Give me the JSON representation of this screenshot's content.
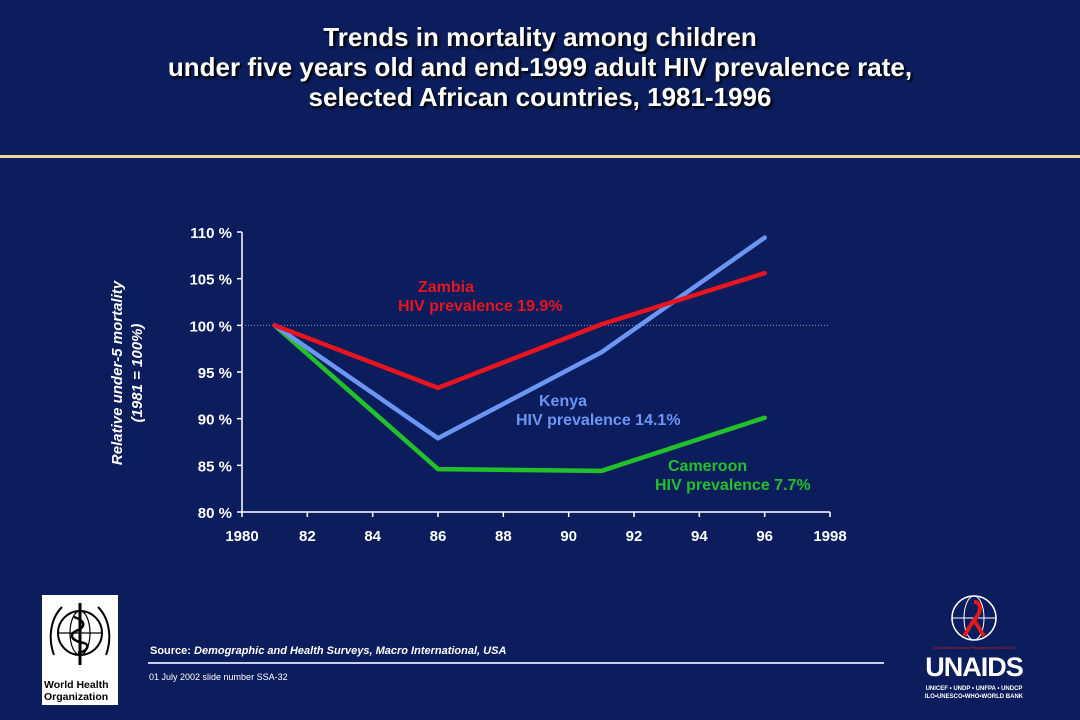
{
  "title_lines": [
    "Trends in mortality among children",
    "under five years old and end-1999 adult HIV prevalence rate,",
    "selected African countries, 1981-1996"
  ],
  "source_label": "Source:",
  "source_text": "Demographic and Health Surveys, Macro International, USA",
  "slide_note": "01 July 2002 slide number SSA-32",
  "who_logo_text": [
    "World Health",
    "Organization"
  ],
  "unaids_logo": {
    "word": "UNAIDS",
    "tagline": "Joint United Nations Programme on HIV/AIDS",
    "partners_line1": "UNICEF • UNDP • UNFPA • UNDCP",
    "partners_line2": "ILO•UNESCO•WHO•WORLD BANK"
  },
  "chart_data": {
    "type": "line",
    "ylabel_lines": [
      "Relative under-5 mortality",
      "(1981 = 100%)"
    ],
    "xlim": [
      1980,
      1998
    ],
    "ylim": [
      80,
      110
    ],
    "x_ticks": [
      1980,
      1982,
      1984,
      1986,
      1988,
      1990,
      1992,
      1994,
      1996,
      1998
    ],
    "x_tick_labels": [
      "1980",
      "82",
      "84",
      "86",
      "88",
      "90",
      "92",
      "94",
      "96",
      "1998"
    ],
    "y_ticks": [
      80,
      85,
      90,
      95,
      100,
      105,
      110
    ],
    "y_tick_labels": [
      "80 %",
      "85 %",
      "90 %",
      "95 %",
      "100 %",
      "105 %",
      "110 %"
    ],
    "reference_line": 100,
    "series": [
      {
        "name": "Zambia",
        "annotation": [
          "Zambia",
          "HIV prevalence 19.9%"
        ],
        "color": "#e8141e",
        "x": [
          1981,
          1986,
          1991,
          1996
        ],
        "y": [
          100,
          93.3,
          100.1,
          105.6
        ]
      },
      {
        "name": "Kenya",
        "annotation": [
          "Kenya",
          "HIV prevalence 14.1%"
        ],
        "color": "#6c96f4",
        "x": [
          1981,
          1986,
          1991,
          1996
        ],
        "y": [
          100,
          87.9,
          97.1,
          109.4
        ]
      },
      {
        "name": "Cameroon",
        "annotation": [
          "Cameroon",
          "HIV prevalence 7.7%"
        ],
        "color": "#22c12a",
        "x": [
          1981,
          1986,
          1991,
          1996
        ],
        "y": [
          100,
          84.6,
          84.4,
          90.1
        ]
      }
    ]
  }
}
